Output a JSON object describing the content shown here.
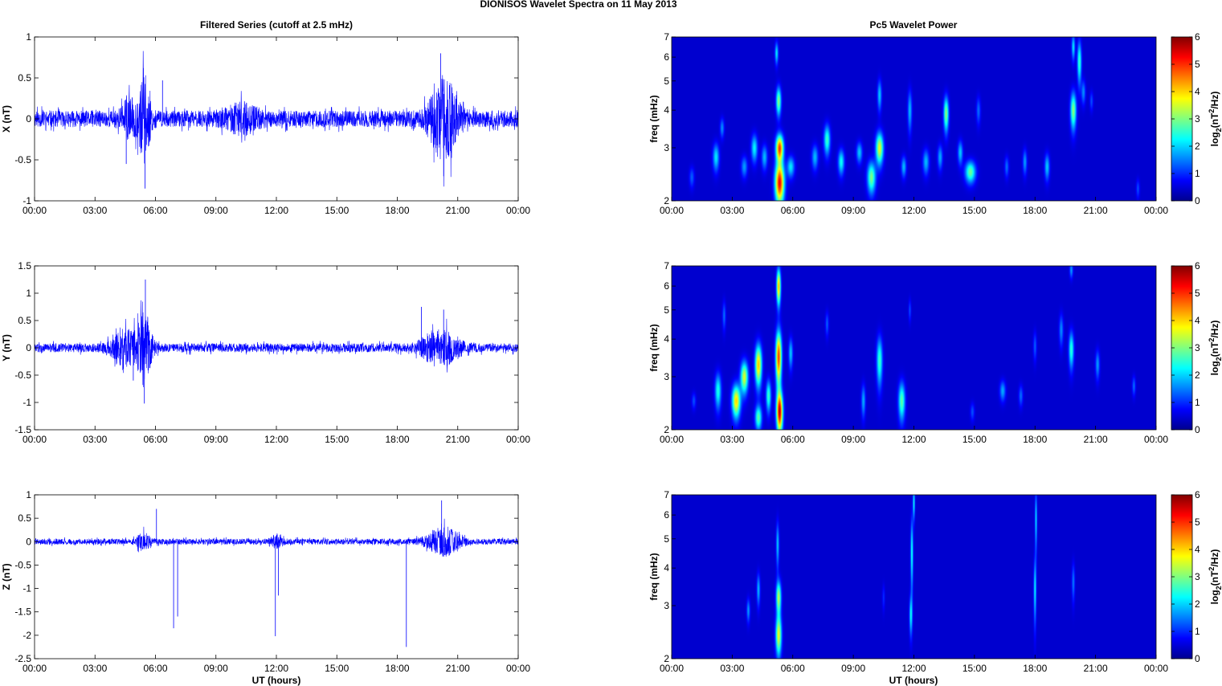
{
  "figure": {
    "title": "DIONISOS Wavelet Spectra on 11 May      2013",
    "left_title": "Filtered Series (cutoff at 2.5 mHz)",
    "right_title": "Pc5 Wavelet Power",
    "xlabel": "UT (hours)"
  },
  "chart_data": [
    {
      "type": "line",
      "name": "x-component-series",
      "ylabel": "X (nT)",
      "xlim": [
        0,
        24
      ],
      "ylim": [
        -1,
        1
      ],
      "yticks": [
        -1,
        -0.5,
        0,
        0.5,
        1
      ],
      "xticks": [
        "00:00",
        "03:00",
        "06:00",
        "09:00",
        "12:00",
        "15:00",
        "18:00",
        "21:00",
        "00:00"
      ],
      "color": "#0000ff",
      "baseline_amplitude": 0.1,
      "bursts": [
        {
          "t": 4.7,
          "w": 0.4,
          "amp": 0.18
        },
        {
          "t": 5.45,
          "w": 0.3,
          "amp": 0.45
        },
        {
          "t": 10.3,
          "w": 0.8,
          "amp": 0.12
        },
        {
          "t": 20.3,
          "w": 0.7,
          "amp": 0.45
        }
      ],
      "spikes": [
        {
          "t": 4.55,
          "y": -0.55
        },
        {
          "t": 5.4,
          "y": 0.62
        },
        {
          "t": 5.48,
          "y": -0.85
        },
        {
          "t": 6.35,
          "y": 0.47
        },
        {
          "t": 20.15,
          "y": 0.8
        },
        {
          "t": 20.3,
          "y": -0.7
        }
      ]
    },
    {
      "type": "line",
      "name": "y-component-series",
      "ylabel": "Y (nT)",
      "xlim": [
        0,
        24
      ],
      "ylim": [
        -1.5,
        1.5
      ],
      "yticks": [
        -1.5,
        -1,
        -0.5,
        0,
        0.5,
        1,
        1.5
      ],
      "xticks": [
        "00:00",
        "03:00",
        "06:00",
        "09:00",
        "12:00",
        "15:00",
        "18:00",
        "21:00",
        "00:00"
      ],
      "color": "#0000ff",
      "baseline_amplitude": 0.08,
      "bursts": [
        {
          "t": 4.5,
          "w": 0.7,
          "amp": 0.28
        },
        {
          "t": 5.45,
          "w": 0.35,
          "amp": 0.6
        },
        {
          "t": 19.5,
          "w": 0.5,
          "amp": 0.1
        },
        {
          "t": 20.3,
          "w": 0.8,
          "amp": 0.28
        }
      ],
      "spikes": [
        {
          "t": 4.9,
          "y": -0.6
        },
        {
          "t": 5.5,
          "y": 1.25
        },
        {
          "t": 5.45,
          "y": -1.02
        },
        {
          "t": 19.2,
          "y": 0.75
        },
        {
          "t": 20.3,
          "y": 0.7
        }
      ]
    },
    {
      "type": "line",
      "name": "z-component-series",
      "ylabel": "Z (nT)",
      "xlim": [
        0,
        24
      ],
      "ylim": [
        -2.5,
        1
      ],
      "yticks": [
        -2.5,
        -2,
        -1.5,
        -1,
        -0.5,
        0,
        0.5,
        1
      ],
      "xticks": [
        "00:00",
        "03:00",
        "06:00",
        "09:00",
        "12:00",
        "15:00",
        "18:00",
        "21:00",
        "00:00"
      ],
      "color": "#0000ff",
      "baseline_amplitude": 0.06,
      "bursts": [
        {
          "t": 5.4,
          "w": 0.35,
          "amp": 0.15
        },
        {
          "t": 12.0,
          "w": 0.3,
          "amp": 0.12
        },
        {
          "t": 20.3,
          "w": 0.8,
          "amp": 0.28
        }
      ],
      "spikes": [
        {
          "t": 6.05,
          "y": 0.7
        },
        {
          "t": 6.9,
          "y": -1.85
        },
        {
          "t": 7.1,
          "y": -1.6
        },
        {
          "t": 11.95,
          "y": -2.02
        },
        {
          "t": 12.1,
          "y": -1.15
        },
        {
          "t": 18.45,
          "y": -2.25
        },
        {
          "t": 20.2,
          "y": 0.88
        }
      ]
    },
    {
      "type": "heatmap",
      "name": "x-wavelet-power",
      "ylabel": "freq (mHz)",
      "yscale": "log",
      "xlim": [
        0,
        24
      ],
      "ylim": [
        2,
        7
      ],
      "yticks": [
        2,
        3,
        4,
        5,
        6,
        7
      ],
      "xticks": [
        "00:00",
        "03:00",
        "06:00",
        "09:00",
        "12:00",
        "15:00",
        "18:00",
        "21:00",
        "00:00"
      ],
      "colorbar": {
        "label": "log2(nT2/Hz)",
        "range": [
          0,
          6
        ],
        "ticks": [
          0,
          1,
          2,
          3,
          4,
          5,
          6
        ],
        "colormap": "jet"
      },
      "blobs": [
        {
          "t": 1.0,
          "f": 2.4,
          "dt": 0.12,
          "df": 0.18,
          "v": 0.9
        },
        {
          "t": 2.2,
          "f": 2.8,
          "dt": 0.15,
          "df": 0.28,
          "v": 1.8
        },
        {
          "t": 2.5,
          "f": 3.5,
          "dt": 0.1,
          "df": 0.25,
          "v": 1.2
        },
        {
          "t": 3.6,
          "f": 2.6,
          "dt": 0.15,
          "df": 0.2,
          "v": 1.3
        },
        {
          "t": 4.1,
          "f": 3.0,
          "dt": 0.15,
          "df": 0.3,
          "v": 1.9
        },
        {
          "t": 4.6,
          "f": 2.8,
          "dt": 0.14,
          "df": 0.25,
          "v": 1.5
        },
        {
          "t": 5.35,
          "f": 2.3,
          "dt": 0.22,
          "df": 0.35,
          "v": 5.2
        },
        {
          "t": 5.35,
          "f": 3.0,
          "dt": 0.18,
          "df": 0.3,
          "v": 4.8
        },
        {
          "t": 5.3,
          "f": 4.3,
          "dt": 0.12,
          "df": 0.45,
          "v": 2.8
        },
        {
          "t": 5.2,
          "f": 6.2,
          "dt": 0.08,
          "df": 0.5,
          "v": 1.8
        },
        {
          "t": 5.9,
          "f": 2.6,
          "dt": 0.18,
          "df": 0.2,
          "v": 1.8
        },
        {
          "t": 7.1,
          "f": 2.8,
          "dt": 0.15,
          "df": 0.25,
          "v": 1.5
        },
        {
          "t": 7.7,
          "f": 3.2,
          "dt": 0.15,
          "df": 0.35,
          "v": 2.3
        },
        {
          "t": 8.4,
          "f": 2.7,
          "dt": 0.15,
          "df": 0.25,
          "v": 2.0
        },
        {
          "t": 9.3,
          "f": 2.9,
          "dt": 0.14,
          "df": 0.22,
          "v": 1.6
        },
        {
          "t": 9.9,
          "f": 2.4,
          "dt": 0.2,
          "df": 0.28,
          "v": 2.7
        },
        {
          "t": 10.3,
          "f": 3.0,
          "dt": 0.18,
          "df": 0.35,
          "v": 3.4
        },
        {
          "t": 10.3,
          "f": 4.5,
          "dt": 0.1,
          "df": 0.5,
          "v": 1.6
        },
        {
          "t": 11.5,
          "f": 2.6,
          "dt": 0.12,
          "df": 0.2,
          "v": 1.5
        },
        {
          "t": 11.8,
          "f": 4.0,
          "dt": 0.1,
          "df": 0.6,
          "v": 1.5
        },
        {
          "t": 12.6,
          "f": 2.7,
          "dt": 0.15,
          "df": 0.25,
          "v": 1.5
        },
        {
          "t": 13.6,
          "f": 3.9,
          "dt": 0.12,
          "df": 0.5,
          "v": 2.8
        },
        {
          "t": 13.3,
          "f": 2.8,
          "dt": 0.12,
          "df": 0.25,
          "v": 1.4
        },
        {
          "t": 14.3,
          "f": 2.9,
          "dt": 0.12,
          "df": 0.25,
          "v": 1.6
        },
        {
          "t": 14.8,
          "f": 2.5,
          "dt": 0.25,
          "df": 0.2,
          "v": 2.6
        },
        {
          "t": 15.2,
          "f": 4.0,
          "dt": 0.1,
          "df": 0.4,
          "v": 1.0
        },
        {
          "t": 16.6,
          "f": 2.6,
          "dt": 0.1,
          "df": 0.2,
          "v": 1.0
        },
        {
          "t": 17.5,
          "f": 2.7,
          "dt": 0.1,
          "df": 0.25,
          "v": 1.3
        },
        {
          "t": 18.6,
          "f": 2.6,
          "dt": 0.12,
          "df": 0.25,
          "v": 1.6
        },
        {
          "t": 19.9,
          "f": 4.0,
          "dt": 0.14,
          "df": 0.55,
          "v": 2.8
        },
        {
          "t": 20.2,
          "f": 5.8,
          "dt": 0.1,
          "df": 0.9,
          "v": 2.3
        },
        {
          "t": 19.9,
          "f": 6.5,
          "dt": 0.08,
          "df": 0.6,
          "v": 1.8
        },
        {
          "t": 20.4,
          "f": 4.6,
          "dt": 0.1,
          "df": 0.4,
          "v": 1.2
        },
        {
          "t": 20.8,
          "f": 4.3,
          "dt": 0.08,
          "df": 0.3,
          "v": 0.8
        },
        {
          "t": 23.1,
          "f": 2.2,
          "dt": 0.08,
          "df": 0.15,
          "v": 0.8
        }
      ]
    },
    {
      "type": "heatmap",
      "name": "y-wavelet-power",
      "ylabel": "freq (mHz)",
      "yscale": "log",
      "xlim": [
        0,
        24
      ],
      "ylim": [
        2,
        7
      ],
      "yticks": [
        2,
        3,
        4,
        5,
        6,
        7
      ],
      "xticks": [
        "00:00",
        "03:00",
        "06:00",
        "09:00",
        "12:00",
        "15:00",
        "18:00",
        "21:00",
        "00:00"
      ],
      "colorbar": {
        "label": "log2(nT2/Hz)",
        "range": [
          0,
          6
        ],
        "ticks": [
          0,
          1,
          2,
          3,
          4,
          5,
          6
        ],
        "colormap": "jet"
      },
      "blobs": [
        {
          "t": 1.1,
          "f": 2.5,
          "dt": 0.1,
          "df": 0.15,
          "v": 0.8
        },
        {
          "t": 2.3,
          "f": 2.7,
          "dt": 0.15,
          "df": 0.35,
          "v": 2.1
        },
        {
          "t": 2.6,
          "f": 4.8,
          "dt": 0.08,
          "df": 0.5,
          "v": 1.0
        },
        {
          "t": 3.2,
          "f": 2.5,
          "dt": 0.2,
          "df": 0.3,
          "v": 3.8
        },
        {
          "t": 3.6,
          "f": 3.0,
          "dt": 0.18,
          "df": 0.35,
          "v": 3.3
        },
        {
          "t": 4.3,
          "f": 3.3,
          "dt": 0.16,
          "df": 0.5,
          "v": 3.9
        },
        {
          "t": 4.3,
          "f": 2.2,
          "dt": 0.16,
          "df": 0.2,
          "v": 2.5
        },
        {
          "t": 4.8,
          "f": 2.6,
          "dt": 0.12,
          "df": 0.3,
          "v": 2.3
        },
        {
          "t": 5.35,
          "f": 2.3,
          "dt": 0.15,
          "df": 0.35,
          "v": 5.4
        },
        {
          "t": 5.3,
          "f": 3.5,
          "dt": 0.14,
          "df": 0.7,
          "v": 4.8
        },
        {
          "t": 5.3,
          "f": 6.0,
          "dt": 0.1,
          "df": 0.8,
          "v": 4.0
        },
        {
          "t": 5.9,
          "f": 3.6,
          "dt": 0.1,
          "df": 0.4,
          "v": 1.6
        },
        {
          "t": 7.7,
          "f": 4.5,
          "dt": 0.08,
          "df": 0.4,
          "v": 0.9
        },
        {
          "t": 9.5,
          "f": 2.5,
          "dt": 0.1,
          "df": 0.3,
          "v": 1.4
        },
        {
          "t": 10.3,
          "f": 3.4,
          "dt": 0.14,
          "df": 0.6,
          "v": 2.3
        },
        {
          "t": 11.4,
          "f": 2.5,
          "dt": 0.16,
          "df": 0.35,
          "v": 2.5
        },
        {
          "t": 11.8,
          "f": 5.0,
          "dt": 0.06,
          "df": 0.4,
          "v": 0.8
        },
        {
          "t": 14.9,
          "f": 2.3,
          "dt": 0.1,
          "df": 0.15,
          "v": 0.8
        },
        {
          "t": 16.4,
          "f": 2.7,
          "dt": 0.14,
          "df": 0.2,
          "v": 1.4
        },
        {
          "t": 17.3,
          "f": 2.6,
          "dt": 0.1,
          "df": 0.2,
          "v": 1.0
        },
        {
          "t": 18.0,
          "f": 3.8,
          "dt": 0.08,
          "df": 0.4,
          "v": 0.9
        },
        {
          "t": 19.3,
          "f": 4.3,
          "dt": 0.1,
          "df": 0.5,
          "v": 1.2
        },
        {
          "t": 19.8,
          "f": 3.7,
          "dt": 0.12,
          "df": 0.5,
          "v": 2.2
        },
        {
          "t": 19.8,
          "f": 6.8,
          "dt": 0.08,
          "df": 0.4,
          "v": 1.3
        },
        {
          "t": 21.1,
          "f": 3.3,
          "dt": 0.1,
          "df": 0.35,
          "v": 1.3
        },
        {
          "t": 22.9,
          "f": 2.8,
          "dt": 0.08,
          "df": 0.2,
          "v": 1.0
        }
      ]
    },
    {
      "type": "heatmap",
      "name": "z-wavelet-power",
      "ylabel": "freq (mHz)",
      "yscale": "log",
      "xlim": [
        0,
        24
      ],
      "ylim": [
        2,
        7
      ],
      "yticks": [
        2,
        3,
        4,
        5,
        6,
        7
      ],
      "xticks": [
        "00:00",
        "03:00",
        "06:00",
        "09:00",
        "12:00",
        "15:00",
        "18:00",
        "21:00",
        "00:00"
      ],
      "colorbar": {
        "label": "log2(nT2/Hz)",
        "range": [
          0,
          6
        ],
        "ticks": [
          0,
          1,
          2,
          3,
          4,
          5,
          6
        ],
        "colormap": "jet"
      },
      "blobs": [
        {
          "t": 3.8,
          "f": 2.9,
          "dt": 0.08,
          "df": 0.25,
          "v": 1.3
        },
        {
          "t": 4.3,
          "f": 3.4,
          "dt": 0.08,
          "df": 0.4,
          "v": 1.5
        },
        {
          "t": 5.3,
          "f": 2.4,
          "dt": 0.14,
          "df": 0.35,
          "v": 3.4
        },
        {
          "t": 5.3,
          "f": 3.2,
          "dt": 0.12,
          "df": 0.4,
          "v": 3.1
        },
        {
          "t": 5.25,
          "f": 4.8,
          "dt": 0.07,
          "df": 0.8,
          "v": 1.6
        },
        {
          "t": 10.5,
          "f": 3.2,
          "dt": 0.06,
          "df": 0.3,
          "v": 0.6
        },
        {
          "t": 11.85,
          "f": 2.8,
          "dt": 0.07,
          "df": 0.4,
          "v": 1.9
        },
        {
          "t": 11.9,
          "f": 4.5,
          "dt": 0.06,
          "df": 1.2,
          "v": 2.1
        },
        {
          "t": 12.0,
          "f": 6.6,
          "dt": 0.05,
          "df": 0.8,
          "v": 2.0
        },
        {
          "t": 18.0,
          "f": 3.4,
          "dt": 0.06,
          "df": 0.8,
          "v": 1.9
        },
        {
          "t": 18.05,
          "f": 5.8,
          "dt": 0.05,
          "df": 1.3,
          "v": 1.8
        },
        {
          "t": 19.9,
          "f": 3.6,
          "dt": 0.07,
          "df": 0.5,
          "v": 1.1
        }
      ]
    }
  ]
}
